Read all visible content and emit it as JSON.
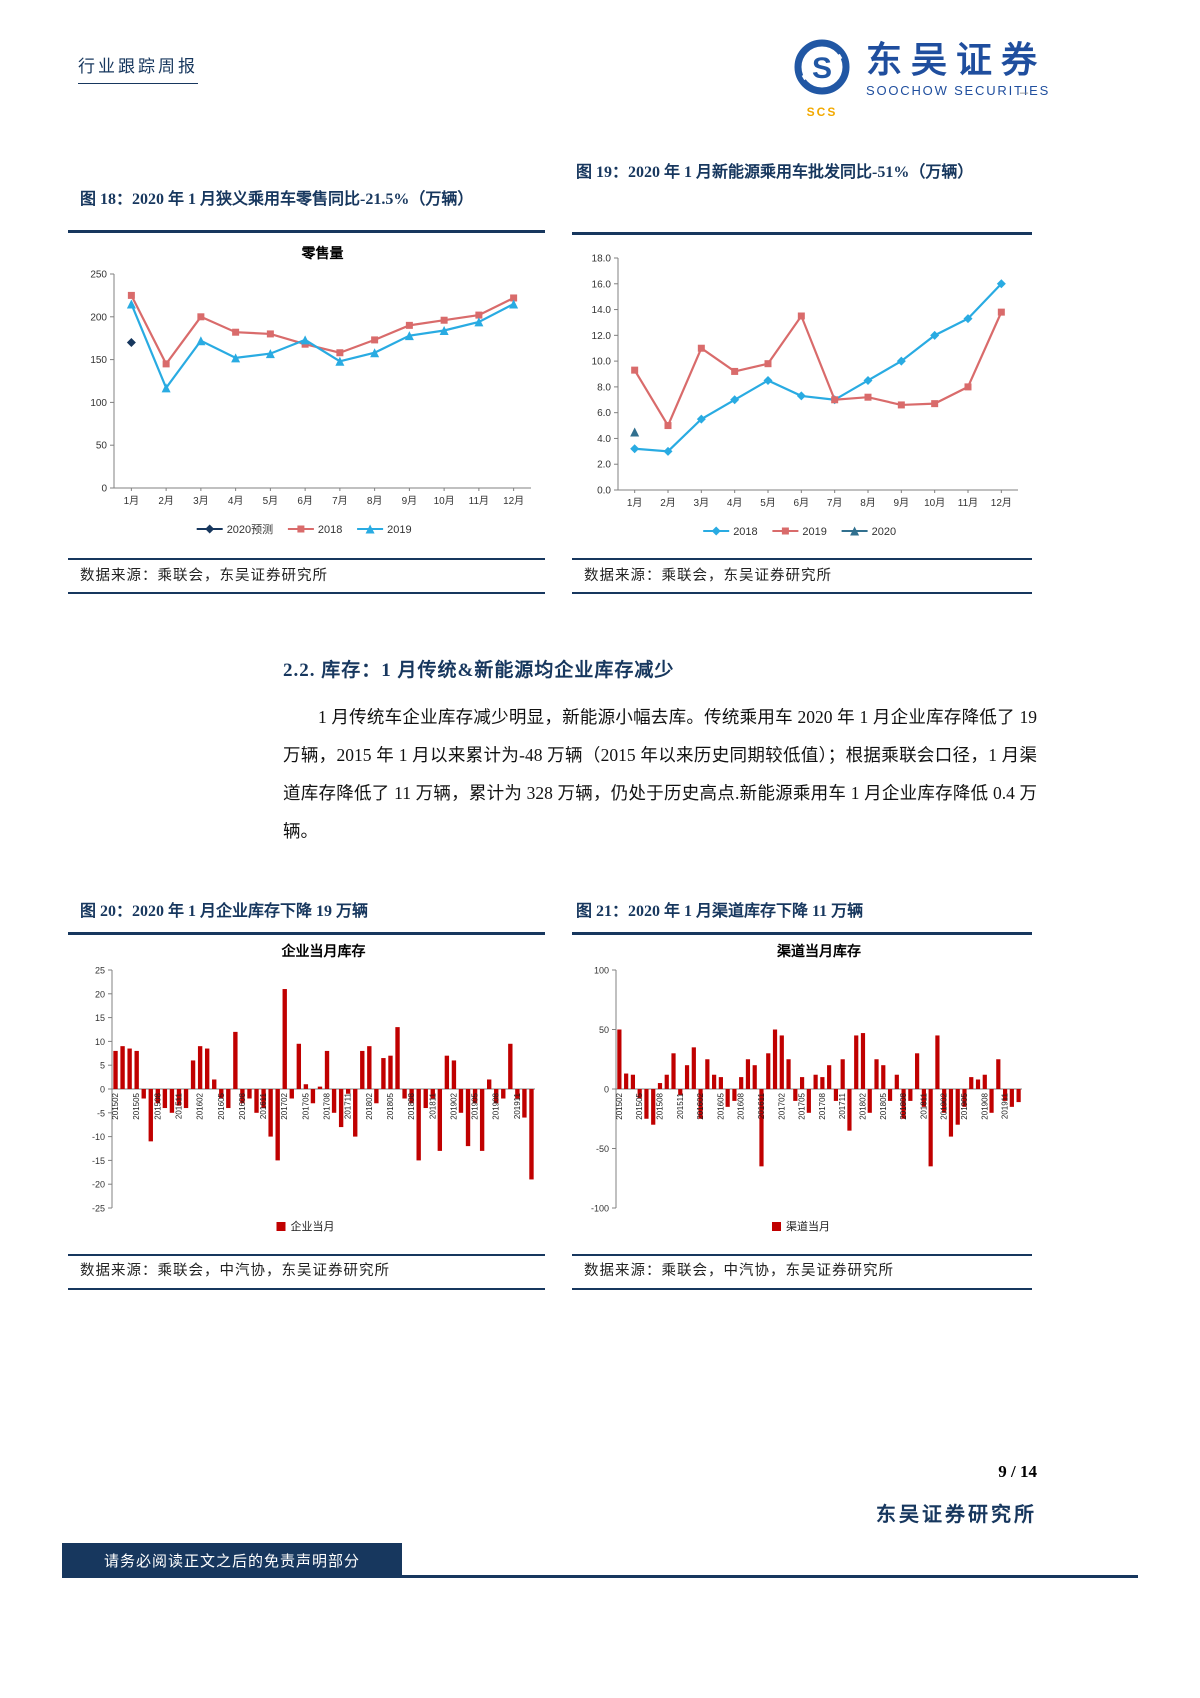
{
  "header": {
    "doc_type": "行业跟踪周报",
    "logo_text": "SCS",
    "brand_cn": "东吴证券",
    "brand_en": "SOOCHOW SECURITIES",
    "dash": "–"
  },
  "figures": {
    "fig18": {
      "title": "图 18：2020 年 1 月狭义乘用车零售同比-21.5%（万辆）",
      "source": "数据来源：乘联会，东吴证券研究所"
    },
    "fig19": {
      "title": "图 19：2020 年 1 月新能源乘用车批发同比-51%（万辆）",
      "source": "数据来源：乘联会，东吴证券研究所"
    },
    "fig20": {
      "title": "图 20：2020 年 1 月企业库存下降 19 万辆",
      "source": "数据来源：乘联会，中汽协，东吴证券研究所"
    },
    "fig21": {
      "title": "图 21：2020 年 1 月渠道库存下降 11 万辆",
      "source": "数据来源：乘联会，中汽协，东吴证券研究所"
    }
  },
  "section": {
    "heading": "2.2. 库存：1 月传统&新能源均企业库存减少",
    "paragraph": "1 月传统车企业库存减少明显，新能源小幅去库。传统乘用车 2020 年 1 月企业库存降低了 19 万辆，2015 年 1 月以来累计为-48 万辆（2015 年以来历史同期较低值）；根据乘联会口径，1 月渠道库存降低了 11 万辆，累计为 328 万辆，仍处于历史高点.新能源乘用车 1 月企业库存降低 0.4 万辆。"
  },
  "footer": {
    "page": "9 / 14",
    "org": "东吴证券研究所",
    "disclaimer": "请务必阅读正文之后的免责声明部分"
  },
  "chart_data": [
    {
      "id": "retail-sales-yoy",
      "type": "line",
      "title": "零售量",
      "categories": [
        "1月",
        "2月",
        "3月",
        "4月",
        "5月",
        "6月",
        "7月",
        "8月",
        "9月",
        "10月",
        "11月",
        "12月"
      ],
      "ylim": [
        0,
        250
      ],
      "ytick_step": 50,
      "y_decimals": 0,
      "grid": false,
      "legend_position": "bottom",
      "series": [
        {
          "name": "2020预测",
          "color": "#17375E",
          "marker": "diamond",
          "values": [
            170,
            null,
            null,
            null,
            null,
            null,
            null,
            null,
            null,
            null,
            null,
            null
          ]
        },
        {
          "name": "2018",
          "color": "#D96B6B",
          "marker": "square",
          "values": [
            225,
            145,
            200,
            182,
            180,
            168,
            158,
            173,
            190,
            196,
            202,
            222
          ]
        },
        {
          "name": "2019",
          "color": "#29ABE2",
          "marker": "triangle",
          "values": [
            215,
            117,
            172,
            152,
            157,
            173,
            148,
            158,
            178,
            184,
            194,
            215
          ]
        }
      ]
    },
    {
      "id": "nev-wholesale-yoy",
      "type": "line",
      "title": "",
      "categories": [
        "1月",
        "2月",
        "3月",
        "4月",
        "5月",
        "6月",
        "7月",
        "8月",
        "9月",
        "10月",
        "11月",
        "12月"
      ],
      "ylim": [
        0,
        18
      ],
      "ytick_step": 2,
      "y_decimals": 1,
      "grid": false,
      "legend_position": "bottom",
      "series": [
        {
          "name": "2018",
          "color": "#29ABE2",
          "marker": "diamond",
          "values": [
            3.2,
            3.0,
            5.5,
            7.0,
            8.5,
            7.3,
            7.0,
            8.5,
            10.0,
            12.0,
            13.3,
            16.0
          ]
        },
        {
          "name": "2019",
          "color": "#D96B6B",
          "marker": "square",
          "values": [
            9.3,
            5.0,
            11.0,
            9.2,
            9.8,
            13.5,
            7.0,
            7.2,
            6.6,
            6.7,
            8.0,
            13.8
          ]
        },
        {
          "name": "2020",
          "color": "#31708F",
          "marker": "triangle",
          "values": [
            4.5,
            null,
            null,
            null,
            null,
            null,
            null,
            null,
            null,
            null,
            null,
            null
          ]
        }
      ]
    },
    {
      "id": "oem-monthly-inventory",
      "type": "bar",
      "title": "企业当月库存",
      "legend": "企业当月",
      "bar_color": "#C00000",
      "ylim": [
        -25,
        25
      ],
      "ytick_step": 5,
      "y_decimals": 0,
      "xtick_every": 3,
      "categories": [
        "201502",
        "201503",
        "201504",
        "201505",
        "201506",
        "201507",
        "201508",
        "201509",
        "201510",
        "201511",
        "201512",
        "201601",
        "201602",
        "201603",
        "201604",
        "201605",
        "201606",
        "201607",
        "201608",
        "201609",
        "201610",
        "201611",
        "201612",
        "201701",
        "201702",
        "201703",
        "201704",
        "201705",
        "201706",
        "201707",
        "201708",
        "201709",
        "201710",
        "201711",
        "201712",
        "201801",
        "201802",
        "201803",
        "201804",
        "201805",
        "201806",
        "201807",
        "201808",
        "201809",
        "201810",
        "201811",
        "201812",
        "201901",
        "201902",
        "201903",
        "201904",
        "201905",
        "201906",
        "201907",
        "201908",
        "201909",
        "201910",
        "201911",
        "201912",
        "202001"
      ],
      "values": [
        8,
        9,
        8.5,
        8,
        -2,
        -11,
        -3,
        -4,
        -5,
        -3.5,
        -4,
        6,
        9,
        8.5,
        2,
        -2,
        -4,
        12,
        -3,
        -2,
        -5,
        -4,
        -10,
        -15,
        21,
        -2,
        9.5,
        1,
        -3,
        0.5,
        8,
        -5,
        -8,
        -1,
        -10,
        8,
        9,
        -3,
        6.5,
        7,
        13,
        -2,
        -3,
        -15,
        -4,
        -2,
        -13,
        7,
        6,
        -5,
        -12,
        -3,
        -13,
        2,
        -3,
        -2,
        9.5,
        -2,
        -6,
        -19
      ]
    },
    {
      "id": "channel-monthly-inventory",
      "type": "bar",
      "title": "渠道当月库存",
      "legend": "渠道当月",
      "bar_color": "#C00000",
      "ylim": [
        -100,
        100
      ],
      "ytick_step": 50,
      "y_decimals": 0,
      "xtick_every": 3,
      "categories": [
        "201502",
        "201503",
        "201504",
        "201505",
        "201506",
        "201507",
        "201508",
        "201509",
        "201510",
        "201511",
        "201512",
        "201601",
        "201602",
        "201603",
        "201604",
        "201605",
        "201606",
        "201607",
        "201608",
        "201609",
        "201610",
        "201611",
        "201612",
        "201701",
        "201702",
        "201703",
        "201704",
        "201705",
        "201706",
        "201707",
        "201708",
        "201709",
        "201710",
        "201711",
        "201712",
        "201801",
        "201802",
        "201803",
        "201804",
        "201805",
        "201806",
        "201807",
        "201808",
        "201809",
        "201810",
        "201811",
        "201812",
        "201901",
        "201902",
        "201903",
        "201904",
        "201905",
        "201906",
        "201907",
        "201908",
        "201909",
        "201910",
        "201911",
        "201912",
        "202001"
      ],
      "values": [
        50,
        13,
        12,
        -8,
        -25,
        -30,
        5,
        12,
        30,
        -5,
        20,
        35,
        -25,
        25,
        12,
        10,
        -15,
        -10,
        10,
        25,
        20,
        -65,
        30,
        50,
        45,
        25,
        -10,
        10,
        -20,
        12,
        10,
        20,
        -10,
        25,
        -35,
        45,
        47,
        -20,
        25,
        20,
        -10,
        12,
        -25,
        -10,
        30,
        -15,
        -65,
        45,
        -20,
        -40,
        -30,
        -15,
        10,
        8,
        12,
        -20,
        25,
        -10,
        -15,
        -11
      ]
    }
  ]
}
